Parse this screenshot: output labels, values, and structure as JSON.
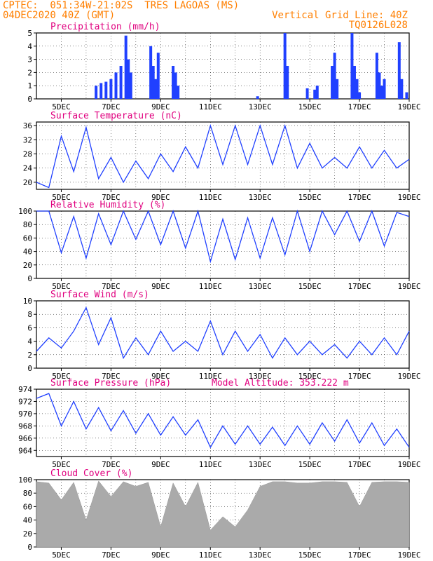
{
  "header": {
    "line1_left": "CPTEC:  051:34W-21:02S  TRES LAGOAS (MS)",
    "line2_left": "04DEC2020 40Z (GMT)",
    "line1_right": "",
    "line2_right": "Vertical Grid Line: 40Z",
    "line3_right": "TQ0126L028"
  },
  "colors": {
    "header": "#ff7f00",
    "title": "#e0007f",
    "series": "#2040ff",
    "cloud": "#aaaaaa",
    "grid": "#000000"
  },
  "x_ticks": [
    "5DEC",
    "7DEC",
    "9DEC",
    "11DEC",
    "13DEC",
    "15DEC",
    "17DEC",
    "19DEC"
  ],
  "chart_data": [
    {
      "type": "bar",
      "title": "Precipitation (mm/h)",
      "ylim": [
        0,
        5
      ],
      "yticks": [
        0,
        1,
        2,
        3,
        4,
        5
      ],
      "x_range_days": [
        4.0,
        19.0
      ],
      "x": [
        6.4,
        6.6,
        6.8,
        7.0,
        7.2,
        7.4,
        7.6,
        7.7,
        7.8,
        8.6,
        8.7,
        8.8,
        8.9,
        9.5,
        9.6,
        9.7,
        12.9,
        14.0,
        14.1,
        14.9,
        15.2,
        15.3,
        15.9,
        16.0,
        16.1,
        16.7,
        16.8,
        16.9,
        17.0,
        17.7,
        17.8,
        17.9,
        18.0,
        18.6,
        18.7,
        18.9
      ],
      "values": [
        1.0,
        1.2,
        1.3,
        1.5,
        2.0,
        2.5,
        4.8,
        3.0,
        2.0,
        4.0,
        2.5,
        1.5,
        3.5,
        2.5,
        2.0,
        1.0,
        0.2,
        5.0,
        2.5,
        0.8,
        0.7,
        1.0,
        2.5,
        3.5,
        1.5,
        5.0,
        2.5,
        1.5,
        0.5,
        3.5,
        2.0,
        1.0,
        1.5,
        4.3,
        1.5,
        0.5
      ]
    },
    {
      "type": "line",
      "title": "Surface Temperature (nC)",
      "ylim": [
        18,
        37
      ],
      "yticks": [
        20,
        24,
        28,
        32,
        36
      ],
      "x": [
        4.0,
        4.5,
        5.0,
        5.5,
        6.0,
        6.5,
        7.0,
        7.5,
        8.0,
        8.5,
        9.0,
        9.5,
        10.0,
        10.5,
        11.0,
        11.5,
        12.0,
        12.5,
        13.0,
        13.5,
        14.0,
        14.5,
        15.0,
        15.5,
        16.0,
        16.5,
        17.0,
        17.5,
        18.0,
        18.5,
        19.0
      ],
      "values": [
        20,
        18.5,
        33,
        23,
        35.5,
        21,
        27,
        20,
        26,
        21,
        28,
        23,
        30,
        24,
        36,
        25,
        36,
        25,
        36,
        25,
        36,
        24,
        31,
        24,
        27,
        24,
        30,
        24,
        29,
        24,
        26.5
      ]
    },
    {
      "type": "line",
      "title": "Relative Humidity (%)",
      "ylim": [
        0,
        100
      ],
      "yticks": [
        0,
        20,
        40,
        60,
        80,
        100
      ],
      "x": [
        4.0,
        4.5,
        5.0,
        5.5,
        6.0,
        6.5,
        7.0,
        7.5,
        8.0,
        8.5,
        9.0,
        9.5,
        10.0,
        10.5,
        11.0,
        11.5,
        12.0,
        12.5,
        13.0,
        13.5,
        14.0,
        14.5,
        15.0,
        15.5,
        16.0,
        16.5,
        17.0,
        17.5,
        18.0,
        18.5,
        19.0
      ],
      "values": [
        100,
        100,
        38,
        92,
        30,
        96,
        50,
        100,
        58,
        100,
        50,
        100,
        45,
        100,
        25,
        88,
        28,
        90,
        30,
        90,
        35,
        100,
        40,
        100,
        65,
        100,
        55,
        100,
        48,
        98,
        92
      ]
    },
    {
      "type": "line",
      "title": "Surface Wind (m/s)",
      "ylim": [
        0,
        10
      ],
      "yticks": [
        0,
        2,
        4,
        6,
        8,
        10
      ],
      "x": [
        4.0,
        4.5,
        5.0,
        5.5,
        6.0,
        6.5,
        7.0,
        7.5,
        8.0,
        8.5,
        9.0,
        9.5,
        10.0,
        10.5,
        11.0,
        11.5,
        12.0,
        12.5,
        13.0,
        13.5,
        14.0,
        14.5,
        15.0,
        15.5,
        16.0,
        16.5,
        17.0,
        17.5,
        18.0,
        18.5,
        19.0
      ],
      "values": [
        2.5,
        4.5,
        3.0,
        5.5,
        9.0,
        3.5,
        7.5,
        1.5,
        4.5,
        2.0,
        5.5,
        2.5,
        4.0,
        2.5,
        7.0,
        2.0,
        5.5,
        2.5,
        5.0,
        1.5,
        4.5,
        2.0,
        4.0,
        2.0,
        3.5,
        1.5,
        4.0,
        2.0,
        4.5,
        2.0,
        5.5
      ]
    },
    {
      "type": "line",
      "title": "Surface Pressure (hPa)",
      "annotation": "Model Altitude: 353.222 m",
      "ylim": [
        963.0,
        974.0
      ],
      "yticks": [
        964,
        966,
        968,
        970,
        972,
        974
      ],
      "x": [
        4.0,
        4.5,
        5.0,
        5.5,
        6.0,
        6.5,
        7.0,
        7.5,
        8.0,
        8.5,
        9.0,
        9.5,
        10.0,
        10.5,
        11.0,
        11.5,
        12.0,
        12.5,
        13.0,
        13.5,
        14.0,
        14.5,
        15.0,
        15.5,
        16.0,
        16.5,
        17.0,
        17.5,
        18.0,
        18.5,
        19.0
      ],
      "values": [
        972.5,
        973.3,
        968,
        972,
        967.5,
        971,
        967.2,
        970.5,
        966.8,
        970,
        966.5,
        969.5,
        966.5,
        969,
        964.5,
        968,
        965,
        968,
        965,
        967.8,
        964.8,
        968,
        965,
        968.5,
        965.5,
        969,
        965.2,
        968.5,
        964.8,
        967.5,
        964.5
      ]
    },
    {
      "type": "area",
      "title": "Cloud Cover (%)",
      "ylim": [
        0,
        100
      ],
      "yticks": [
        0,
        20,
        40,
        60,
        80,
        100
      ],
      "x": [
        4.0,
        4.5,
        5.0,
        5.5,
        6.0,
        6.5,
        7.0,
        7.5,
        8.0,
        8.5,
        9.0,
        9.5,
        10.0,
        10.5,
        11.0,
        11.5,
        12.0,
        12.5,
        13.0,
        13.5,
        14.0,
        14.5,
        15.0,
        15.5,
        16.0,
        16.5,
        17.0,
        17.5,
        18.0,
        18.5,
        19.0
      ],
      "values": [
        97,
        95,
        70,
        96,
        40,
        98,
        75,
        97,
        90,
        96,
        30,
        95,
        60,
        96,
        25,
        45,
        30,
        55,
        90,
        97,
        97,
        95,
        95,
        97,
        97,
        96,
        60,
        96,
        97,
        97,
        96
      ]
    }
  ]
}
